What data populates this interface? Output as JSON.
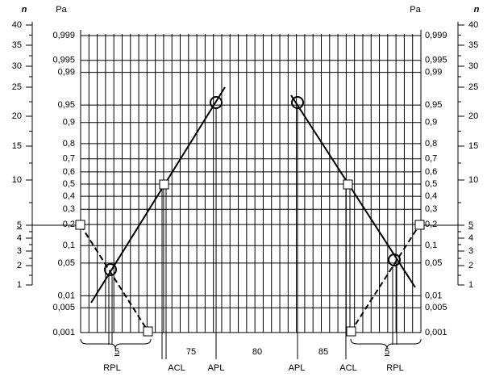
{
  "n_title": "n",
  "pa_title": "Pa",
  "n_ticks": [
    40,
    35,
    30,
    25,
    20,
    15,
    10,
    5,
    4,
    3,
    2,
    1
  ],
  "probability_ticks": [
    {
      "value": 0.999,
      "label": "0,999"
    },
    {
      "value": 0.995,
      "label": "0,995"
    },
    {
      "value": 0.99,
      "label": "0,99"
    },
    {
      "value": 0.95,
      "label": "0,95"
    },
    {
      "value": 0.9,
      "label": "0,9"
    },
    {
      "value": 0.8,
      "label": "0,8"
    },
    {
      "value": 0.7,
      "label": "0,7"
    },
    {
      "value": 0.6,
      "label": "0,6"
    },
    {
      "value": 0.5,
      "label": "0,5"
    },
    {
      "value": 0.4,
      "label": "0,4"
    },
    {
      "value": 0.3,
      "label": "0,3"
    },
    {
      "value": 0.2,
      "label": "0,2"
    },
    {
      "value": 0.1,
      "label": "0,1"
    },
    {
      "value": 0.05,
      "label": "0,05"
    },
    {
      "value": 0.01,
      "label": "0,01"
    },
    {
      "value": 0.005,
      "label": "0,005"
    },
    {
      "value": 0.001,
      "label": "0,001"
    }
  ],
  "x_labels": [
    "5",
    "75",
    "80",
    "85",
    "5"
  ],
  "markers": [
    "RPL",
    "ACL",
    "APL",
    "APL",
    "ACL",
    "RPL"
  ]
}
